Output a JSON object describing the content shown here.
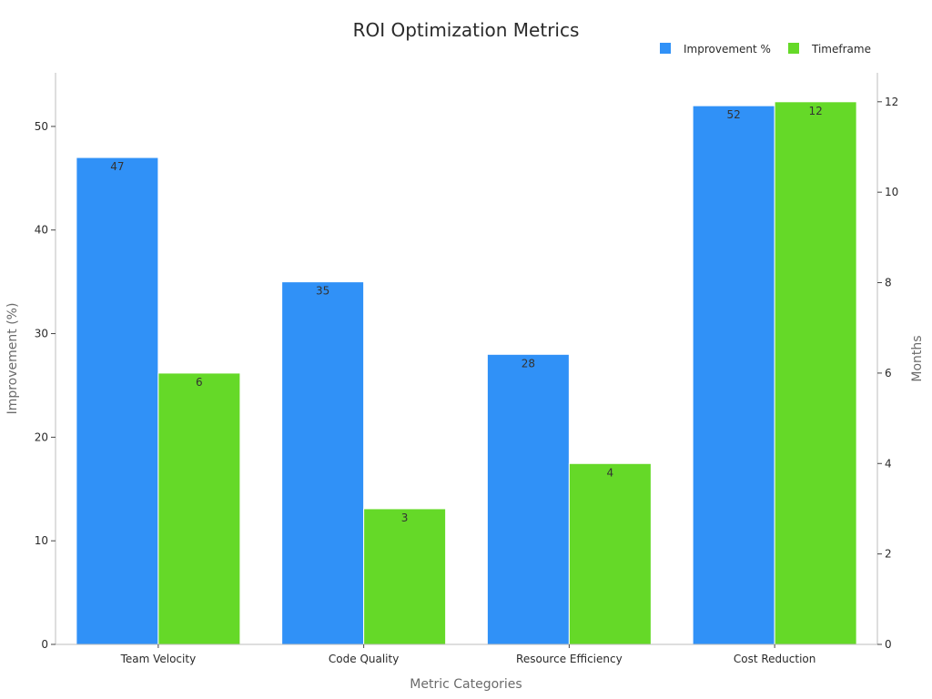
{
  "chart_data": {
    "type": "bar",
    "title": "ROI Optimization Metrics",
    "xlabel": "Metric Categories",
    "ylabel": "Improvement (%)",
    "y2label": "Months",
    "categories": [
      "Team Velocity",
      "Code Quality",
      "Resource Efficiency",
      "Cost Reduction"
    ],
    "series": [
      {
        "name": "Improvement %",
        "values": [
          47,
          35,
          28,
          52
        ],
        "axis": "left",
        "color": "#3091f7"
      },
      {
        "name": "Timeframe",
        "values": [
          6,
          3,
          4,
          12
        ],
        "axis": "right",
        "color": "#65d928"
      }
    ],
    "ylim": [
      0,
      55
    ],
    "y2lim": [
      0,
      12.6
    ],
    "yticks": [
      0,
      10,
      20,
      30,
      40,
      50
    ],
    "y2ticks": [
      0,
      2,
      4,
      6,
      8,
      10,
      12
    ],
    "legend_position": "top-right",
    "grid": false
  }
}
